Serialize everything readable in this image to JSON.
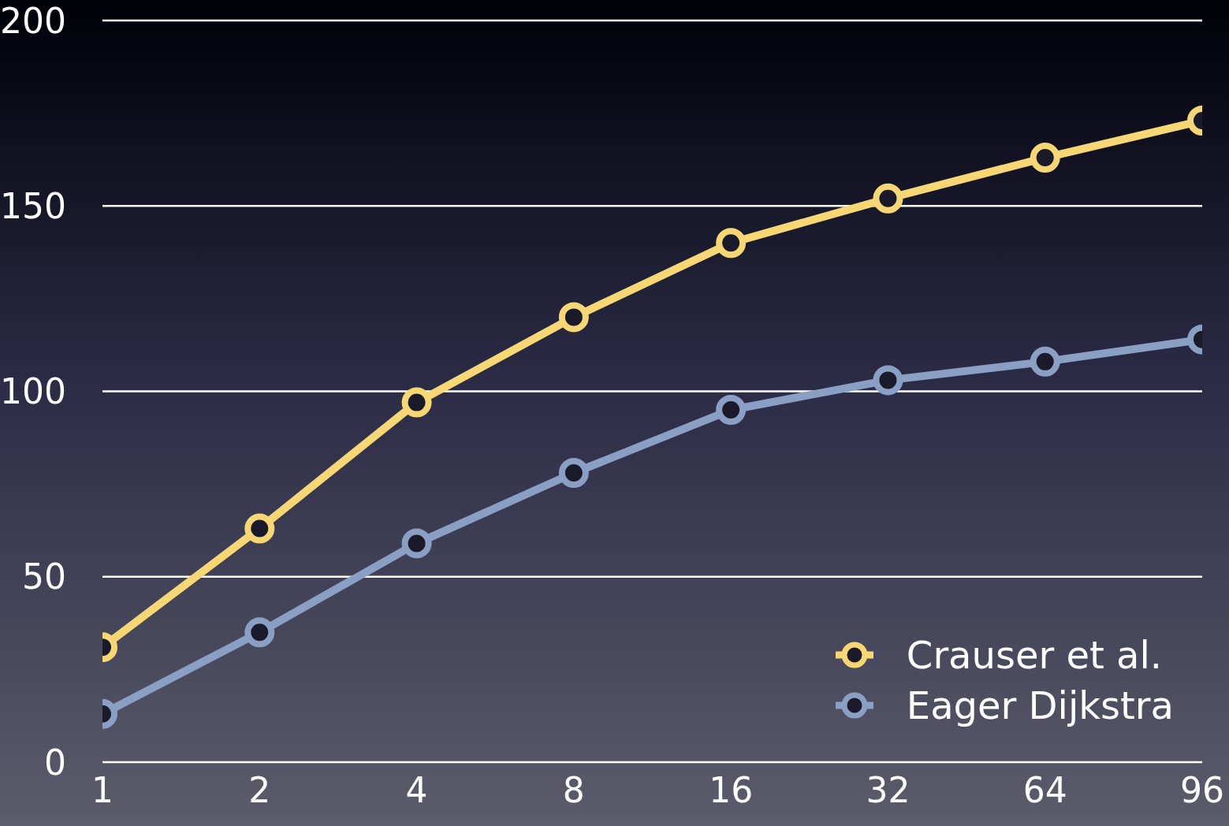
{
  "chart_data": {
    "type": "line",
    "categories": [
      "1",
      "2",
      "4",
      "8",
      "16",
      "32",
      "64",
      "96"
    ],
    "series": [
      {
        "name": "Crauser et al.",
        "color": "#f7d774",
        "values": [
          31,
          63,
          97,
          120,
          140,
          152,
          163,
          173
        ]
      },
      {
        "name": "Eager Dijkstra",
        "color": "#8a9fc4",
        "values": [
          13,
          35,
          59,
          78,
          95,
          103,
          108,
          114
        ]
      }
    ],
    "ylim": [
      0,
      200
    ],
    "yticks": [
      0,
      50,
      100,
      150,
      200
    ],
    "grid": "y",
    "legend": "bottom right",
    "marker": "circle",
    "line_style": "solid"
  }
}
